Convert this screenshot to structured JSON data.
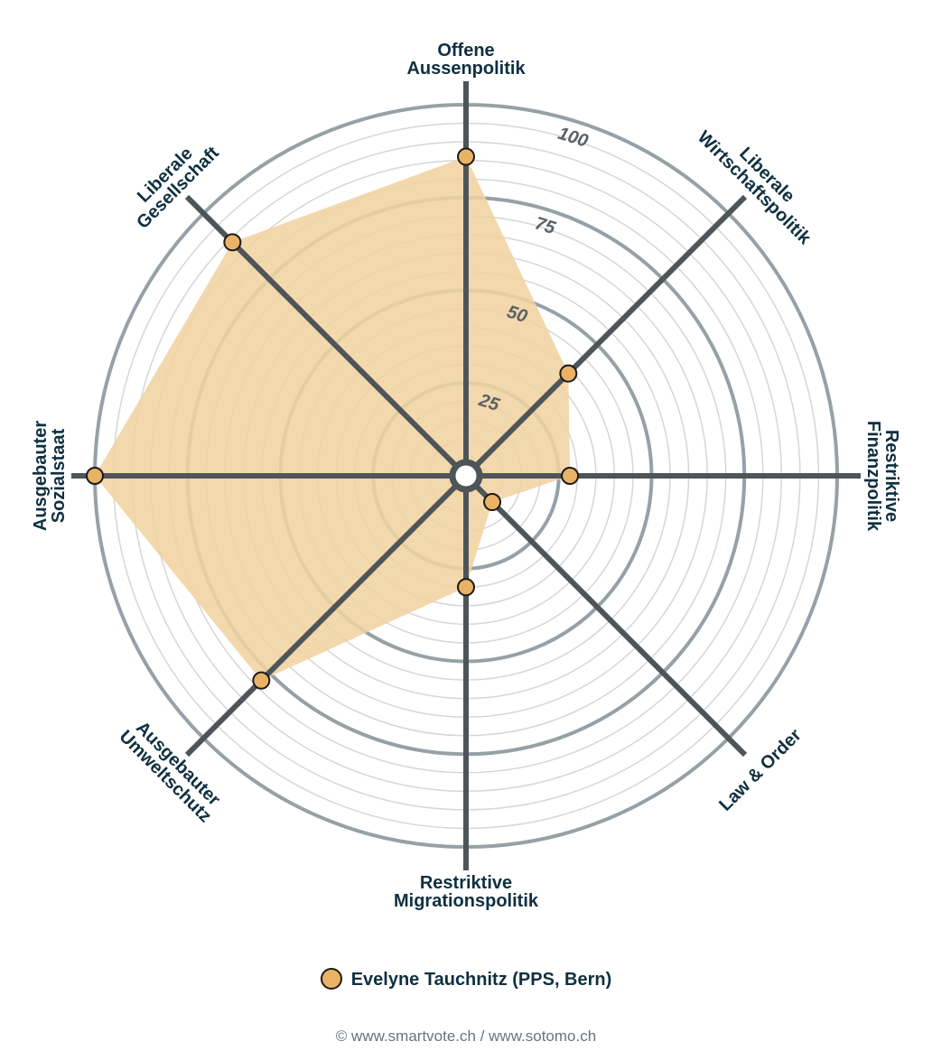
{
  "chart_data": {
    "type": "radar",
    "axes": [
      "Offene Aussenpolitik",
      "Liberale Wirtschaftspolitik",
      "Restriktive Finanzpolitik",
      "Law & Order",
      "Restriktive Migrationspolitik",
      "Ausgebauter Umweltschutz",
      "Ausgebauter Sozialstaat",
      "Liberale Gesellschaft"
    ],
    "axis_label_lines": [
      [
        "Offene",
        "Aussenpolitik"
      ],
      [
        "Liberale",
        "Wirtschaftspolitik"
      ],
      [
        "Restriktive",
        "Finanzpolitik"
      ],
      [
        "Law & Order"
      ],
      [
        "Restriktive",
        "Migrationspolitik"
      ],
      [
        "Ausgebauter",
        "Umweltschutz"
      ],
      [
        "Ausgebauter",
        "Sozialstaat"
      ],
      [
        "Liberale",
        "Gesellschaft"
      ]
    ],
    "series": [
      {
        "name": "Evelyne Tauchnitz (PPS, Bern)",
        "values": [
          86,
          39,
          28,
          10,
          30,
          78,
          100,
          89
        ]
      }
    ],
    "ticks": [
      "25",
      "50",
      "75",
      "100"
    ],
    "tick_values": [
      25,
      50,
      75,
      100
    ],
    "range": [
      0,
      100
    ],
    "grid": true,
    "legend_position": "bottom"
  },
  "legend": {
    "label": "Evelyne Tauchnitz (PPS, Bern)"
  },
  "footer": {
    "text": "© www.smartvote.ch / www.sotomo.ch"
  },
  "colors": {
    "series_fill": "#f0d3a1",
    "marker": "#e9b264",
    "axis": "#4e5558",
    "major_ring": "#95a1a6",
    "minor_ring": "#d6d6d6",
    "text": "#0f3040"
  }
}
